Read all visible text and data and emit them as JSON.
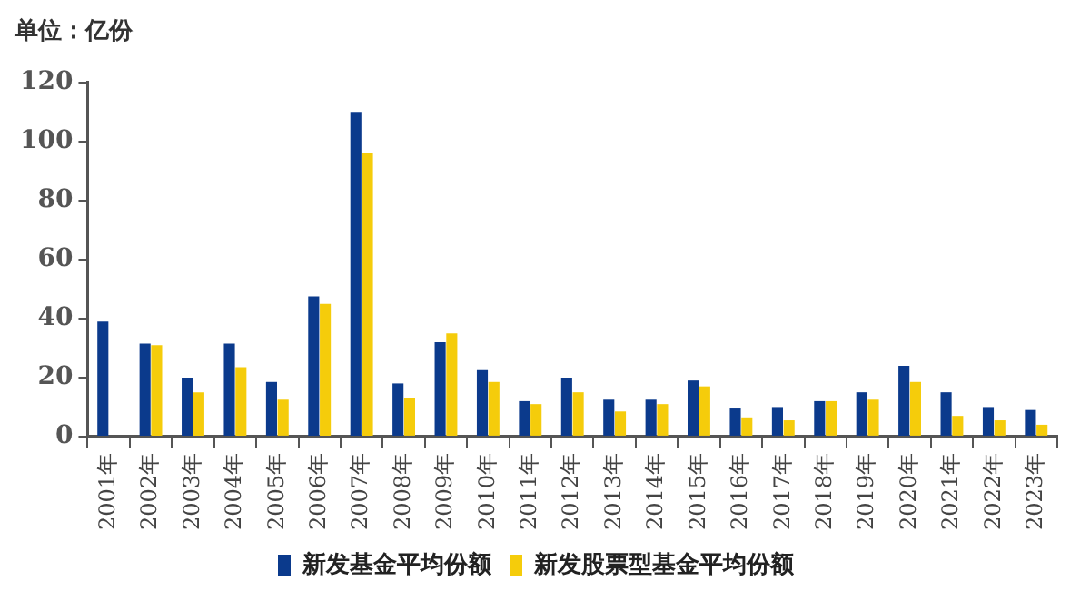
{
  "chart_data": {
    "type": "bar",
    "ylabel": "单位：亿份",
    "categories": [
      "2001年",
      "2002年",
      "2003年",
      "2004年",
      "2005年",
      "2006年",
      "2007年",
      "2008年",
      "2009年",
      "2010年",
      "2011年",
      "2012年",
      "2013年",
      "2014年",
      "2015年",
      "2016年",
      "2017年",
      "2018年",
      "2019年",
      "2020年",
      "2021年",
      "2022年",
      "2023年"
    ],
    "series": [
      {
        "name": "新发基金平均份额",
        "color": "#0b3a8c",
        "values": [
          39,
          31.5,
          20,
          31.5,
          18.5,
          47.5,
          110,
          18,
          32,
          22.5,
          12,
          20,
          12.5,
          12.5,
          19,
          9.5,
          10,
          12,
          15,
          24,
          15,
          10,
          9
        ]
      },
      {
        "name": "新发股票型基金平均份额",
        "color": "#f5cc0b",
        "values": [
          null,
          31,
          15,
          23.5,
          12.5,
          45,
          96,
          13,
          35,
          18.5,
          11,
          15,
          8.5,
          11,
          17,
          6.5,
          5.5,
          12,
          12.5,
          18.5,
          7,
          5.5,
          4
        ]
      }
    ],
    "ylim": [
      0,
      120
    ],
    "yticks": [
      0,
      20,
      40,
      60,
      80,
      100,
      120
    ],
    "grid": false,
    "legend": "bottom"
  }
}
